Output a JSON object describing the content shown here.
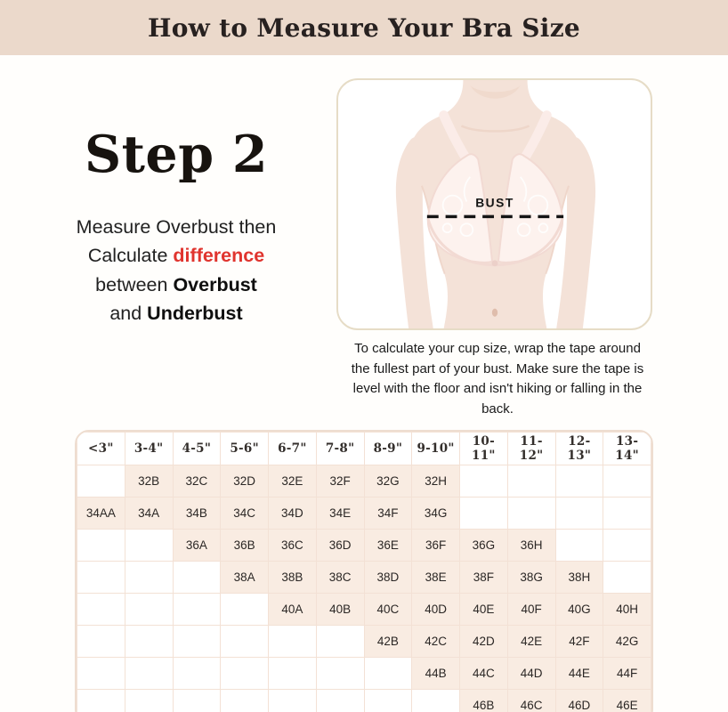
{
  "banner": {
    "title": "How to Measure Your Bra Size"
  },
  "step": {
    "heading": "Step 2",
    "line1": "Measure Overbust then",
    "line2_prefix": "Calculate ",
    "line2_highlight": "difference",
    "line3_prefix": "between ",
    "line3_bold": "Overbust",
    "line4_prefix": "and ",
    "line4_bold": "Underbust"
  },
  "figure": {
    "bust_label": "BUST",
    "caption": "To calculate your cup size, wrap the tape around the fullest part of your bust. Make sure the tape is level with the floor and isn't hiking or falling in the back."
  },
  "colors": {
    "banner_bg": "#ebd9cb",
    "accent_red": "#e0342e",
    "cell_fill": "#f9ece2",
    "table_border": "#f3e1d5",
    "card_border": "#e6dcc6"
  },
  "size_chart": {
    "type": "table",
    "columns": [
      "<3\"",
      "3-4\"",
      "4-5\"",
      "5-6\"",
      "6-7\"",
      "7-8\"",
      "8-9\"",
      "9-10\"",
      "10-11\"",
      "11-12\"",
      "12-13\"",
      "13-14\""
    ],
    "rows": [
      [
        "",
        "32B",
        "32C",
        "32D",
        "32E",
        "32F",
        "32G",
        "32H",
        "",
        "",
        "",
        ""
      ],
      [
        "34AA",
        "34A",
        "34B",
        "34C",
        "34D",
        "34E",
        "34F",
        "34G",
        "",
        "",
        "",
        ""
      ],
      [
        "",
        "",
        "36A",
        "36B",
        "36C",
        "36D",
        "36E",
        "36F",
        "36G",
        "36H",
        "",
        ""
      ],
      [
        "",
        "",
        "",
        "38A",
        "38B",
        "38C",
        "38D",
        "38E",
        "38F",
        "38G",
        "38H",
        ""
      ],
      [
        "",
        "",
        "",
        "",
        "40A",
        "40B",
        "40C",
        "40D",
        "40E",
        "40F",
        "40G",
        "40H"
      ],
      [
        "",
        "",
        "",
        "",
        "",
        "",
        "42B",
        "42C",
        "42D",
        "42E",
        "42F",
        "42G"
      ],
      [
        "",
        "",
        "",
        "",
        "",
        "",
        "",
        "44B",
        "44C",
        "44D",
        "44E",
        "44F"
      ],
      [
        "",
        "",
        "",
        "",
        "",
        "",
        "",
        "",
        "46B",
        "46C",
        "46D",
        "46E"
      ]
    ]
  }
}
